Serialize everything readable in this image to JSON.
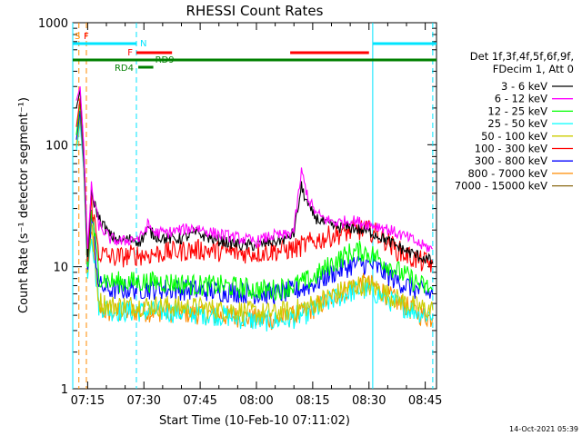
{
  "chart_data": {
    "type": "line",
    "title": "RHESSI Count Rates",
    "xlabel": "Start Time (10-Feb-10 07:11:02)",
    "ylabel": "Count Rate (s⁻¹ detector segment⁻¹)",
    "yscale": "log",
    "ylim": [
      1,
      1000
    ],
    "xlim": [
      "07:11:02",
      "08:48:00"
    ],
    "x_ticks": [
      "07:15",
      "07:30",
      "07:45",
      "08:00",
      "08:15",
      "08:30",
      "08:45"
    ],
    "y_ticks": [
      "1",
      "10",
      "100",
      "1000"
    ],
    "legend_position": "right",
    "legend_header": [
      "Det 1f,3f,4f,5f,6f,9f,",
      "FDecim 1, Att 0"
    ],
    "series": [
      {
        "name": "3 - 6 keV",
        "color": "#000000",
        "x": [
          "07:12",
          "07:13",
          "07:14",
          "07:15",
          "07:16",
          "07:18",
          "07:21",
          "07:24",
          "07:27",
          "07:29",
          "07:31",
          "07:33",
          "07:36",
          "07:40",
          "07:44",
          "07:48",
          "07:52",
          "07:56",
          "08:00",
          "08:04",
          "08:08",
          "08:10",
          "08:12",
          "08:14",
          "08:16",
          "08:19",
          "08:22",
          "08:25",
          "08:28",
          "08:31",
          "08:34",
          "08:37",
          "08:41",
          "08:44",
          "08:47"
        ],
        "y": [
          200,
          280,
          90,
          12,
          40,
          25,
          18,
          16,
          17,
          16,
          20,
          18,
          17,
          17,
          19,
          17,
          16,
          15,
          15,
          16,
          17,
          19,
          45,
          30,
          25,
          22,
          21,
          21,
          20,
          19,
          17,
          15,
          13,
          12,
          11
        ]
      },
      {
        "name": "6 - 12 keV",
        "color": "#ff00ff",
        "x": [
          "07:12",
          "07:13",
          "07:14",
          "07:15",
          "07:16",
          "07:18",
          "07:21",
          "07:24",
          "07:27",
          "07:29",
          "07:31",
          "07:33",
          "07:36",
          "07:40",
          "07:44",
          "07:48",
          "07:52",
          "07:56",
          "08:00",
          "08:04",
          "08:08",
          "08:10",
          "08:12",
          "08:14",
          "08:16",
          "08:19",
          "08:22",
          "08:25",
          "08:28",
          "08:31",
          "08:34",
          "08:37",
          "08:41",
          "08:44",
          "08:47"
        ],
        "y": [
          230,
          300,
          95,
          14,
          45,
          22,
          17,
          16,
          17,
          17,
          22,
          19,
          19,
          20,
          21,
          19,
          18,
          17,
          16,
          18,
          18,
          20,
          60,
          35,
          27,
          24,
          23,
          24,
          23,
          22,
          21,
          19,
          17,
          15,
          14
        ]
      },
      {
        "name": "12 - 25 keV",
        "color": "#00ff00",
        "x": [
          "07:12",
          "07:13",
          "07:14",
          "07:15",
          "07:16",
          "07:18",
          "07:21",
          "07:24",
          "07:27",
          "07:30",
          "07:35",
          "07:40",
          "07:45",
          "07:50",
          "07:55",
          "08:00",
          "08:05",
          "08:10",
          "08:15",
          "08:20",
          "08:25",
          "08:28",
          "08:31",
          "08:34",
          "08:37",
          "08:41",
          "08:44",
          "08:47"
        ],
        "y": [
          120,
          220,
          80,
          10,
          30,
          8.5,
          7.5,
          7.5,
          7.5,
          7.5,
          7.5,
          7.3,
          7,
          7,
          6.8,
          6.5,
          6.5,
          7,
          8,
          10.5,
          13,
          13.5,
          12.5,
          11,
          9.5,
          8,
          7,
          6.5
        ]
      },
      {
        "name": "25 - 50 keV",
        "color": "#00ffff",
        "x": [
          "07:12",
          "07:13",
          "07:14",
          "07:15",
          "07:16",
          "07:18",
          "07:21",
          "07:24",
          "07:27",
          "07:30",
          "07:35",
          "07:40",
          "07:45",
          "07:50",
          "07:55",
          "08:00",
          "08:05",
          "08:10",
          "08:15",
          "08:20",
          "08:25",
          "08:28",
          "08:31",
          "08:34",
          "08:37",
          "08:41",
          "08:44",
          "08:47"
        ],
        "y": [
          90,
          150,
          60,
          8,
          20,
          4.8,
          4.4,
          4.3,
          4.3,
          4.3,
          4.3,
          4.2,
          4.1,
          4,
          3.8,
          3.6,
          3.6,
          3.8,
          4.3,
          5.3,
          6.2,
          6.5,
          6.2,
          5.6,
          5,
          4.5,
          4.2,
          4
        ]
      },
      {
        "name": "50 - 100 keV",
        "color": "#cccc00",
        "x": [
          "07:12",
          "07:13",
          "07:14",
          "07:15",
          "07:16",
          "07:18",
          "07:21",
          "07:24",
          "07:27",
          "07:30",
          "07:35",
          "07:40",
          "07:45",
          "07:50",
          "07:55",
          "08:00",
          "08:05",
          "08:10",
          "08:15",
          "08:20",
          "08:25",
          "08:28",
          "08:31",
          "08:34",
          "08:37",
          "08:41",
          "08:44",
          "08:47"
        ],
        "y": [
          100,
          170,
          65,
          9,
          22,
          5.2,
          4.8,
          4.8,
          4.8,
          4.8,
          4.8,
          4.7,
          4.6,
          4.5,
          4.4,
          4.2,
          4.2,
          4.4,
          4.9,
          5.8,
          6.8,
          7.1,
          6.8,
          6.2,
          5.5,
          4.9,
          4.6,
          4.4
        ]
      },
      {
        "name": "100 - 300 keV",
        "color": "#ff0000",
        "x": [
          "07:12",
          "07:13",
          "07:14",
          "07:15",
          "07:16",
          "07:18",
          "07:21",
          "07:24",
          "07:27",
          "07:30",
          "07:35",
          "07:40",
          "07:45",
          "07:50",
          "07:55",
          "08:00",
          "08:05",
          "08:10",
          "08:15",
          "08:20",
          "08:25",
          "08:28",
          "08:31",
          "08:34",
          "08:37",
          "08:41",
          "08:44",
          "08:47"
        ],
        "y": [
          140,
          240,
          85,
          11,
          35,
          13,
          12,
          12,
          12.5,
          12.5,
          13,
          13.5,
          13.8,
          13.5,
          13,
          13,
          13.5,
          14,
          16,
          18,
          19.5,
          20,
          19.5,
          17,
          14,
          12,
          11,
          10.5
        ]
      },
      {
        "name": "300 - 800 keV",
        "color": "#0000ff",
        "x": [
          "07:12",
          "07:13",
          "07:14",
          "07:15",
          "07:16",
          "07:18",
          "07:21",
          "07:24",
          "07:27",
          "07:30",
          "07:35",
          "07:40",
          "07:45",
          "07:50",
          "07:55",
          "08:00",
          "08:05",
          "08:10",
          "08:15",
          "08:20",
          "08:25",
          "08:28",
          "08:31",
          "08:34",
          "08:37",
          "08:41",
          "08:44",
          "08:47"
        ],
        "y": [
          110,
          190,
          70,
          9.5,
          28,
          7,
          6.5,
          6.5,
          6.6,
          6.6,
          6.6,
          6.5,
          6.4,
          6.3,
          6.2,
          6,
          6,
          6.3,
          7.2,
          8.8,
          10.2,
          10.6,
          10.2,
          9,
          7.8,
          6.8,
          6.2,
          6
        ]
      },
      {
        "name": "800 - 7000 keV",
        "color": "#ff8c00",
        "x": [
          "07:12",
          "07:13",
          "07:14",
          "07:15",
          "07:16",
          "07:18",
          "07:21",
          "07:24",
          "07:27",
          "07:30",
          "07:35",
          "07:40",
          "07:45",
          "07:50",
          "07:55",
          "08:00",
          "08:05",
          "08:10",
          "08:15",
          "08:20",
          "08:25",
          "08:28",
          "08:31",
          "08:34",
          "08:37",
          "08:41",
          "08:44",
          "08:47"
        ],
        "y": [
          95,
          160,
          62,
          8.5,
          21,
          4.5,
          4.2,
          4.2,
          4.3,
          4.3,
          4.3,
          4.2,
          4.1,
          4,
          3.9,
          3.7,
          3.7,
          3.9,
          4.5,
          5.6,
          6.8,
          7.3,
          7,
          6.2,
          5.3,
          4.5,
          4,
          3.8
        ]
      },
      {
        "name": "7000 - 15000 keV",
        "color": "#8b6914",
        "x": [],
        "y": []
      }
    ],
    "annotations": {
      "markers_top_left": [
        "S",
        "F"
      ],
      "flags": [
        {
          "label": "N",
          "color": "#00e5ff"
        },
        {
          "label": "F",
          "color": "#ff0000"
        },
        {
          "label": "RD9",
          "color": "#008000"
        },
        {
          "label": "RD4",
          "color": "#008000"
        }
      ],
      "flag_bars": [
        {
          "color": "#00e5ff",
          "x0": "07:11:02",
          "x1": "07:28:00",
          "row": "N"
        },
        {
          "color": "#00e5ff",
          "x0": "08:31:00",
          "x1": "08:48:00",
          "row": "N"
        },
        {
          "color": "#ff0000",
          "x0": "07:28:00",
          "x1": "07:37:30",
          "row": "F"
        },
        {
          "color": "#ff0000",
          "x0": "08:09:00",
          "x1": "08:30:00",
          "row": "F"
        },
        {
          "color": "#008000",
          "x0": "07:11:02",
          "x1": "08:48:00",
          "row": "RD9"
        },
        {
          "color": "#008000",
          "x0": "07:28:30",
          "x1": "07:32:30",
          "row": "RD4"
        }
      ],
      "vertical_lines": [
        {
          "x": "07:11:02",
          "color": "#00e5ff",
          "style": "solid"
        },
        {
          "x": "07:12:40",
          "color": "#ff8c00",
          "style": "dashed"
        },
        {
          "x": "07:14:40",
          "color": "#ff8c00",
          "style": "dashed"
        },
        {
          "x": "07:28:00",
          "color": "#00e5ff",
          "style": "dashed"
        },
        {
          "x": "08:31:00",
          "color": "#00e5ff",
          "style": "solid"
        },
        {
          "x": "08:47:00",
          "color": "#00e5ff",
          "style": "dashed"
        }
      ]
    }
  },
  "footer": {
    "timestamp": "14-Oct-2021 05:39"
  }
}
